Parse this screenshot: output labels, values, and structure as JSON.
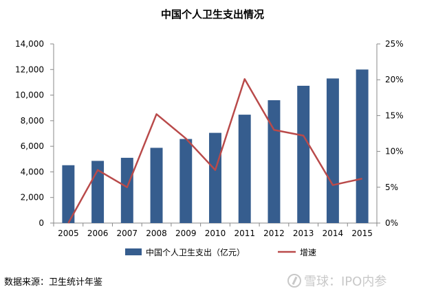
{
  "chart_data": {
    "type": "bar",
    "title": "中国个人卫生支出情况",
    "categories": [
      "2005",
      "2006",
      "2007",
      "2008",
      "2009",
      "2010",
      "2011",
      "2012",
      "2013",
      "2014",
      "2015"
    ],
    "series": [
      {
        "name": "中国个人卫生支出（亿元）",
        "type": "bar",
        "axis": "left",
        "color": "#365d8e",
        "values": [
          4520,
          4860,
          5100,
          5880,
          6570,
          7050,
          8470,
          9600,
          10730,
          11300,
          12000
        ]
      },
      {
        "name": "增速",
        "type": "line",
        "axis": "right",
        "color": "#b94a4a",
        "values": [
          null,
          7.4,
          5.0,
          15.2,
          11.8,
          7.4,
          20.1,
          13.0,
          12.2,
          5.3,
          6.2
        ]
      }
    ],
    "y_left": {
      "min": 0,
      "max": 14000,
      "ticks": [
        "0",
        "2,000",
        "4,000",
        "6,000",
        "8,000",
        "10,000",
        "12,000",
        "14,000"
      ]
    },
    "y_right": {
      "min": 0,
      "max": 25,
      "ticks": [
        "0%",
        "5%",
        "10%",
        "15%",
        "20%",
        "25%"
      ]
    },
    "grid": false,
    "legend_position": "bottom"
  },
  "source": "数据来源：卫生统计年鉴",
  "watermark": "雪球：IPO内参"
}
